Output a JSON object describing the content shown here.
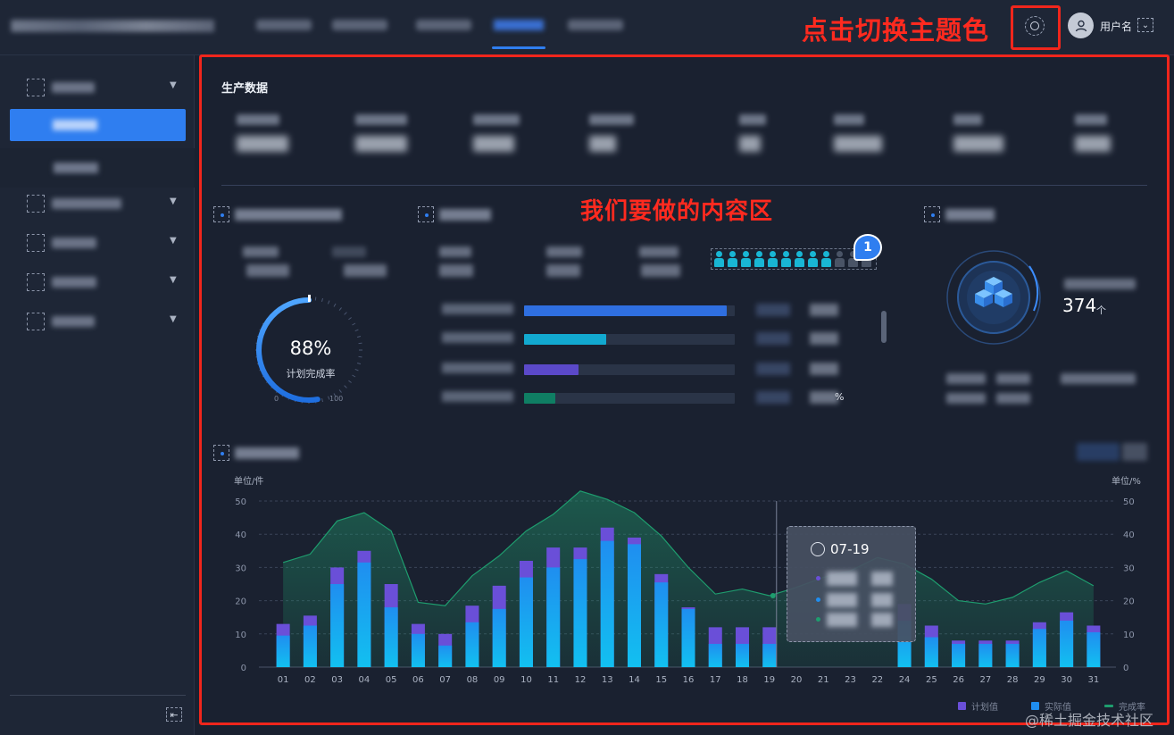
{
  "header": {
    "username": "用户名",
    "annotation_theme": "点击切换主题色"
  },
  "content": {
    "annotation": "我们要做的内容区",
    "production_title": "生产数据"
  },
  "gauge": {
    "value": 0.88,
    "value_text": "88%",
    "label": "计划完成率",
    "min": "0",
    "max": "100"
  },
  "progress_rows": [
    {
      "fill": 0.96,
      "color": "#2f6fe0",
      "pct": ""
    },
    {
      "fill": 0.39,
      "color": "#12a9d0",
      "pct": ""
    },
    {
      "fill": 0.26,
      "color": "#5b49c9",
      "pct": ""
    },
    {
      "fill": 0.15,
      "color": "#0f7e63",
      "pct": "%"
    }
  ],
  "people_badge": "1",
  "inventory": {
    "value": "374",
    "unit": "个"
  },
  "tooltip": {
    "date": "07-19"
  },
  "chart_data": {
    "type": "bar",
    "categories": [
      "01",
      "02",
      "03",
      "04",
      "05",
      "06",
      "07",
      "08",
      "09",
      "10",
      "11",
      "12",
      "13",
      "14",
      "15",
      "16",
      "17",
      "18",
      "19",
      "20",
      "21",
      "23",
      "22",
      "24",
      "25",
      "26",
      "27",
      "28",
      "29",
      "30",
      "31"
    ],
    "ylabel_left": "单位/件",
    "ylabel_right": "单位/%",
    "ylim": [
      0,
      50
    ],
    "y2lim": [
      0,
      50
    ],
    "yticks": [
      "0",
      "10",
      "20",
      "30",
      "40",
      "50"
    ],
    "series": [
      {
        "name": "计划值",
        "values": [
          13,
          15.5,
          30,
          35,
          25,
          13,
          10,
          18.5,
          24.5,
          32,
          36,
          36,
          42,
          39,
          28,
          18,
          12,
          12,
          12,
          0,
          0,
          0,
          0,
          19,
          12.5,
          8,
          8,
          8,
          13.5,
          16.5,
          12.5
        ]
      },
      {
        "name": "实际值",
        "values": [
          9.5,
          12.5,
          25,
          31.5,
          18,
          10,
          6.5,
          13.5,
          17.5,
          27,
          30,
          32.5,
          38,
          37,
          25.5,
          17.5,
          7,
          7,
          7,
          0,
          0,
          0,
          0,
          14,
          9,
          7,
          7,
          7,
          11.5,
          14,
          10.5
        ]
      },
      {
        "name": "完成率",
        "values": [
          31.5,
          34,
          44,
          46.5,
          41,
          19.5,
          18.5,
          27.5,
          33.5,
          41,
          46,
          53,
          50.5,
          46.5,
          39.5,
          30,
          22,
          23.5,
          21.5,
          24,
          27,
          29,
          33,
          31,
          26.5,
          20,
          19,
          21,
          25.5,
          29,
          24.5
        ]
      }
    ],
    "legend": [
      "计划值",
      "实际值",
      "完成率"
    ],
    "colors": {
      "plan": "#6a4fd8",
      "actual": "#1fb3ea",
      "rate": "#1e9d6e"
    }
  },
  "watermark": "@稀土掘金技术社区"
}
